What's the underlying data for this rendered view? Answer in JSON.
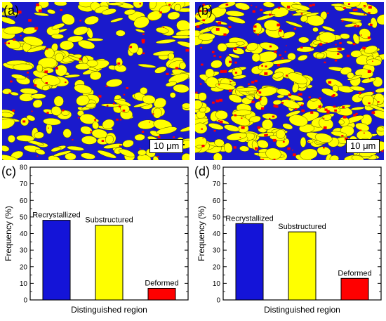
{
  "panels": {
    "a": {
      "label": "(a)",
      "scalebar": "10 μm"
    },
    "b": {
      "label": "(b)",
      "scalebar": "10 μm"
    },
    "c": {
      "label": "(c)"
    },
    "d": {
      "label": "(d)"
    }
  },
  "colors": {
    "recrystallized": "#1414d8",
    "substructured": "#ffff00",
    "deformed": "#ff0000",
    "map_background": "#1a1acc"
  },
  "chart_data": [
    {
      "type": "bar",
      "panel": "(c)",
      "categories": [
        "Recrystallized",
        "Substructured",
        "Deformed"
      ],
      "values": [
        48,
        45,
        7
      ],
      "colors": [
        "#1414d8",
        "#ffff00",
        "#ff0000"
      ],
      "xlabel": "Distinguished region",
      "ylabel": "Frequency (%)",
      "ylim": [
        0,
        80
      ],
      "yticks": [
        0,
        10,
        20,
        30,
        40,
        50,
        60,
        70,
        80
      ],
      "grid": false,
      "legend": "none"
    },
    {
      "type": "bar",
      "panel": "(d)",
      "categories": [
        "Recrystallized",
        "Substructured",
        "Deformed"
      ],
      "values": [
        46,
        41,
        13
      ],
      "colors": [
        "#1414d8",
        "#ffff00",
        "#ff0000"
      ],
      "xlabel": "Distinguished region",
      "ylabel": "Frequency (%)",
      "ylim": [
        0,
        80
      ],
      "yticks": [
        0,
        10,
        20,
        30,
        40,
        50,
        60,
        70,
        80
      ],
      "grid": false,
      "legend": "none"
    }
  ]
}
